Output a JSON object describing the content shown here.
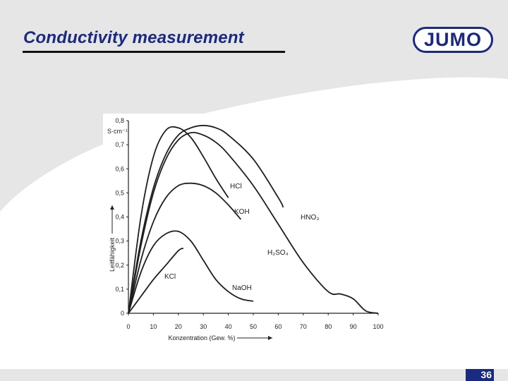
{
  "slide": {
    "title": "Conductivity measurement",
    "logo_text": "JUMO",
    "page_number": "36",
    "colors": {
      "brand": "#1a2a80",
      "background_swoosh": "#e6e6e6",
      "text": "#222222"
    }
  },
  "chart_data": {
    "type": "line",
    "title": "",
    "xlabel": "Konzentration (Gew. %)",
    "ylabel": "Leitfähigkeit",
    "yunit": "S·cm⁻¹",
    "xlim": [
      0,
      100
    ],
    "ylim": [
      0,
      0.8
    ],
    "x_ticks": [
      "0",
      "10",
      "20",
      "30",
      "40",
      "50",
      "60",
      "70",
      "80",
      "90",
      "100"
    ],
    "y_ticks": [
      "0",
      "0,1",
      "0,2",
      "0,3",
      "0,4",
      "0,5",
      "0,6",
      "0,7",
      "0,8"
    ],
    "grid": false,
    "series": [
      {
        "name": "HCl",
        "label": "HCl",
        "x": [
          0,
          5,
          10,
          15,
          20,
          25,
          30,
          35,
          40
        ],
        "y": [
          0,
          0.4,
          0.65,
          0.76,
          0.77,
          0.73,
          0.65,
          0.56,
          0.48
        ]
      },
      {
        "name": "KOH",
        "label": "KOH",
        "x": [
          0,
          5,
          10,
          15,
          20,
          25,
          30,
          35,
          40,
          45
        ],
        "y": [
          0,
          0.22,
          0.38,
          0.48,
          0.53,
          0.54,
          0.53,
          0.5,
          0.45,
          0.39
        ]
      },
      {
        "name": "HNO₃",
        "label": "HNO₃",
        "x": [
          0,
          5,
          10,
          15,
          20,
          25,
          30,
          35,
          40,
          50,
          60,
          62
        ],
        "y": [
          0,
          0.3,
          0.52,
          0.66,
          0.74,
          0.77,
          0.78,
          0.77,
          0.74,
          0.64,
          0.48,
          0.44
        ]
      },
      {
        "name": "H₂SO₄",
        "label": "H₂SO₄",
        "x": [
          0,
          5,
          10,
          15,
          20,
          25,
          30,
          35,
          40,
          50,
          60,
          70,
          80,
          85,
          90,
          95,
          100
        ],
        "y": [
          0,
          0.28,
          0.5,
          0.64,
          0.72,
          0.75,
          0.74,
          0.71,
          0.66,
          0.53,
          0.37,
          0.21,
          0.09,
          0.08,
          0.06,
          0.01,
          0
        ]
      },
      {
        "name": "NaOH",
        "label": "NaOH",
        "x": [
          0,
          5,
          10,
          15,
          20,
          25,
          30,
          35,
          40,
          45,
          50
        ],
        "y": [
          0,
          0.17,
          0.28,
          0.33,
          0.34,
          0.3,
          0.22,
          0.14,
          0.09,
          0.06,
          0.05
        ]
      },
      {
        "name": "KCl",
        "label": "KCl",
        "x": [
          0,
          5,
          10,
          15,
          20,
          22
        ],
        "y": [
          0,
          0.07,
          0.14,
          0.2,
          0.26,
          0.27
        ]
      }
    ]
  }
}
